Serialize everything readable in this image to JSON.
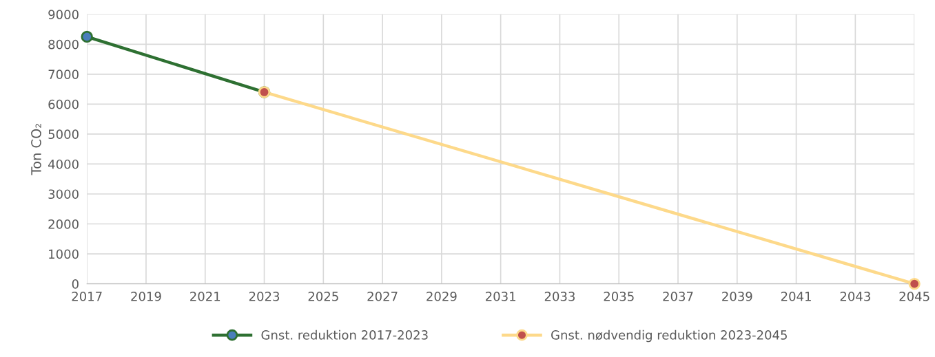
{
  "chart_data": {
    "type": "line",
    "ylabel": "Ton CO₂",
    "xlim": [
      2017,
      2045
    ],
    "xticks": [
      2017,
      2019,
      2021,
      2023,
      2025,
      2027,
      2029,
      2031,
      2033,
      2035,
      2037,
      2039,
      2041,
      2043,
      2045
    ],
    "ylim": [
      0,
      9000
    ],
    "yticks": [
      0,
      1000,
      2000,
      3000,
      4000,
      5000,
      6000,
      7000,
      8000,
      9000
    ],
    "grid": true,
    "legend": "bottom",
    "marker": "circle",
    "line_style": "solid",
    "series": [
      {
        "name": "Gnst. reduktion 2017-2023",
        "color": "#2e7032",
        "colors": [
          "#4a7ebb",
          "#4a7ebb"
        ],
        "x": [
          2017,
          2023
        ],
        "values": [
          8250,
          6400
        ]
      },
      {
        "name": "Gnst. nødvendig reduktion 2023-2045",
        "color": "#fdd98a",
        "colors": [
          "#c0504d",
          "#c0504d"
        ],
        "x": [
          2023,
          2045
        ],
        "values": [
          6400,
          0
        ]
      }
    ]
  }
}
